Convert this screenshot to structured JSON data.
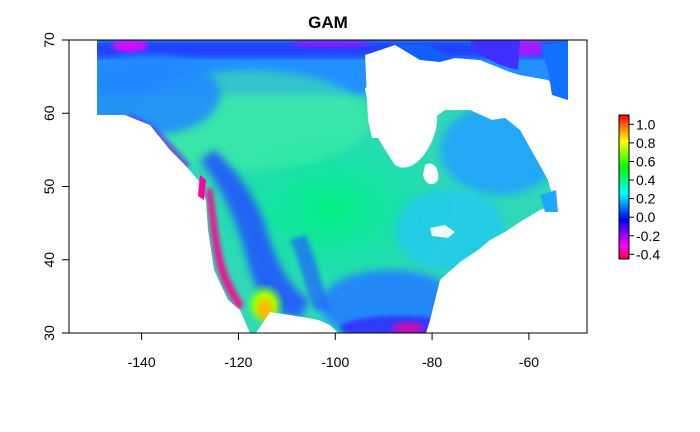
{
  "title": "GAM",
  "x_axis": {
    "range": [
      -155,
      -48
    ],
    "ticks": [
      {
        "value": -140,
        "label": "-140"
      },
      {
        "value": -120,
        "label": "-120"
      },
      {
        "value": -100,
        "label": "-100"
      },
      {
        "value": -80,
        "label": "-80"
      },
      {
        "value": -60,
        "label": "-60"
      }
    ]
  },
  "y_axis": {
    "range": [
      30,
      70
    ],
    "ticks": [
      {
        "value": 30,
        "label": "30"
      },
      {
        "value": 40,
        "label": "40"
      },
      {
        "value": 50,
        "label": "50"
      },
      {
        "value": 60,
        "label": "60"
      },
      {
        "value": 70,
        "label": "70"
      }
    ]
  },
  "legend": {
    "range": [
      -0.45,
      1.1
    ],
    "ticks": [
      {
        "value": 1.0,
        "label": "1.0"
      },
      {
        "value": 0.8,
        "label": "0.8"
      },
      {
        "value": 0.6,
        "label": "0.6"
      },
      {
        "value": 0.4,
        "label": "0.4"
      },
      {
        "value": 0.2,
        "label": "0.2"
      },
      {
        "value": 0.0,
        "label": "0.0"
      },
      {
        "value": -0.2,
        "label": "-0.2"
      },
      {
        "value": -0.4,
        "label": "-0.4"
      }
    ],
    "colors": [
      "#ff0040",
      "#ff00ff",
      "#8000ff",
      "#0000ff",
      "#0080ff",
      "#00ffff",
      "#00ff80",
      "#00ff00",
      "#80ff00",
      "#ffff00",
      "#ff8000",
      "#ff0000"
    ]
  },
  "map": {
    "land_color_mid": "#30e0a0",
    "ocean_color": "#ffffff"
  }
}
